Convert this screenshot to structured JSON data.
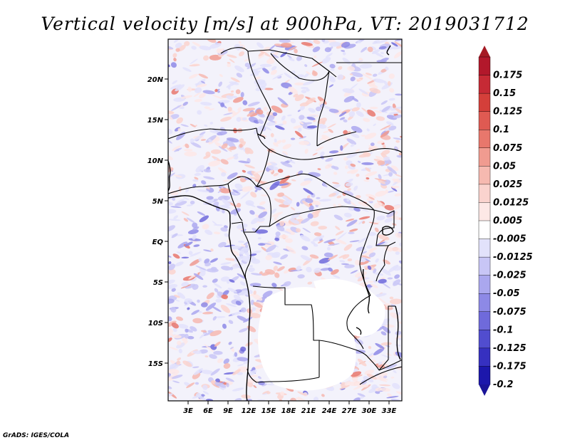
{
  "title": "Vertical velocity [m/s] at 900hPa, VT: 2019031712",
  "credit": "GrADS: IGES/COLA",
  "map": {
    "lat_labels": [
      "20N",
      "15N",
      "10N",
      "5N",
      "EQ",
      "5S",
      "10S",
      "15S"
    ],
    "lon_labels": [
      "3E",
      "6E",
      "9E",
      "12E",
      "15E",
      "18E",
      "21E",
      "24E",
      "27E",
      "30E",
      "33E"
    ]
  },
  "colorbar": {
    "levels": [
      {
        "label": "0.175",
        "color": "#b2182b"
      },
      {
        "label": "0.15",
        "color": "#c62a35"
      },
      {
        "label": "0.125",
        "color": "#d43f3a"
      },
      {
        "label": "0.1",
        "color": "#df5a52"
      },
      {
        "label": "0.075",
        "color": "#e8776c"
      },
      {
        "label": "0.05",
        "color": "#f09b90"
      },
      {
        "label": "0.025",
        "color": "#f6b9b0"
      },
      {
        "label": "0.0125",
        "color": "#fad3ce"
      },
      {
        "label": "0.005",
        "color": "#fde8e6"
      },
      {
        "label": "-0.005",
        "color": "#ffffff"
      },
      {
        "label": "-0.0125",
        "color": "#e2e2fb"
      },
      {
        "label": "-0.025",
        "color": "#c8c6f6"
      },
      {
        "label": "-0.05",
        "color": "#aaa7ee"
      },
      {
        "label": "-0.075",
        "color": "#8d89e6"
      },
      {
        "label": "-0.1",
        "color": "#6f6adb"
      },
      {
        "label": "-0.125",
        "color": "#514dcf"
      },
      {
        "label": "-0.175",
        "color": "#3630c0"
      },
      {
        "label": "-0.2",
        "color": "#1c17ab"
      }
    ],
    "top_color": "#a51a24",
    "bottom_color": "#1a1498"
  }
}
